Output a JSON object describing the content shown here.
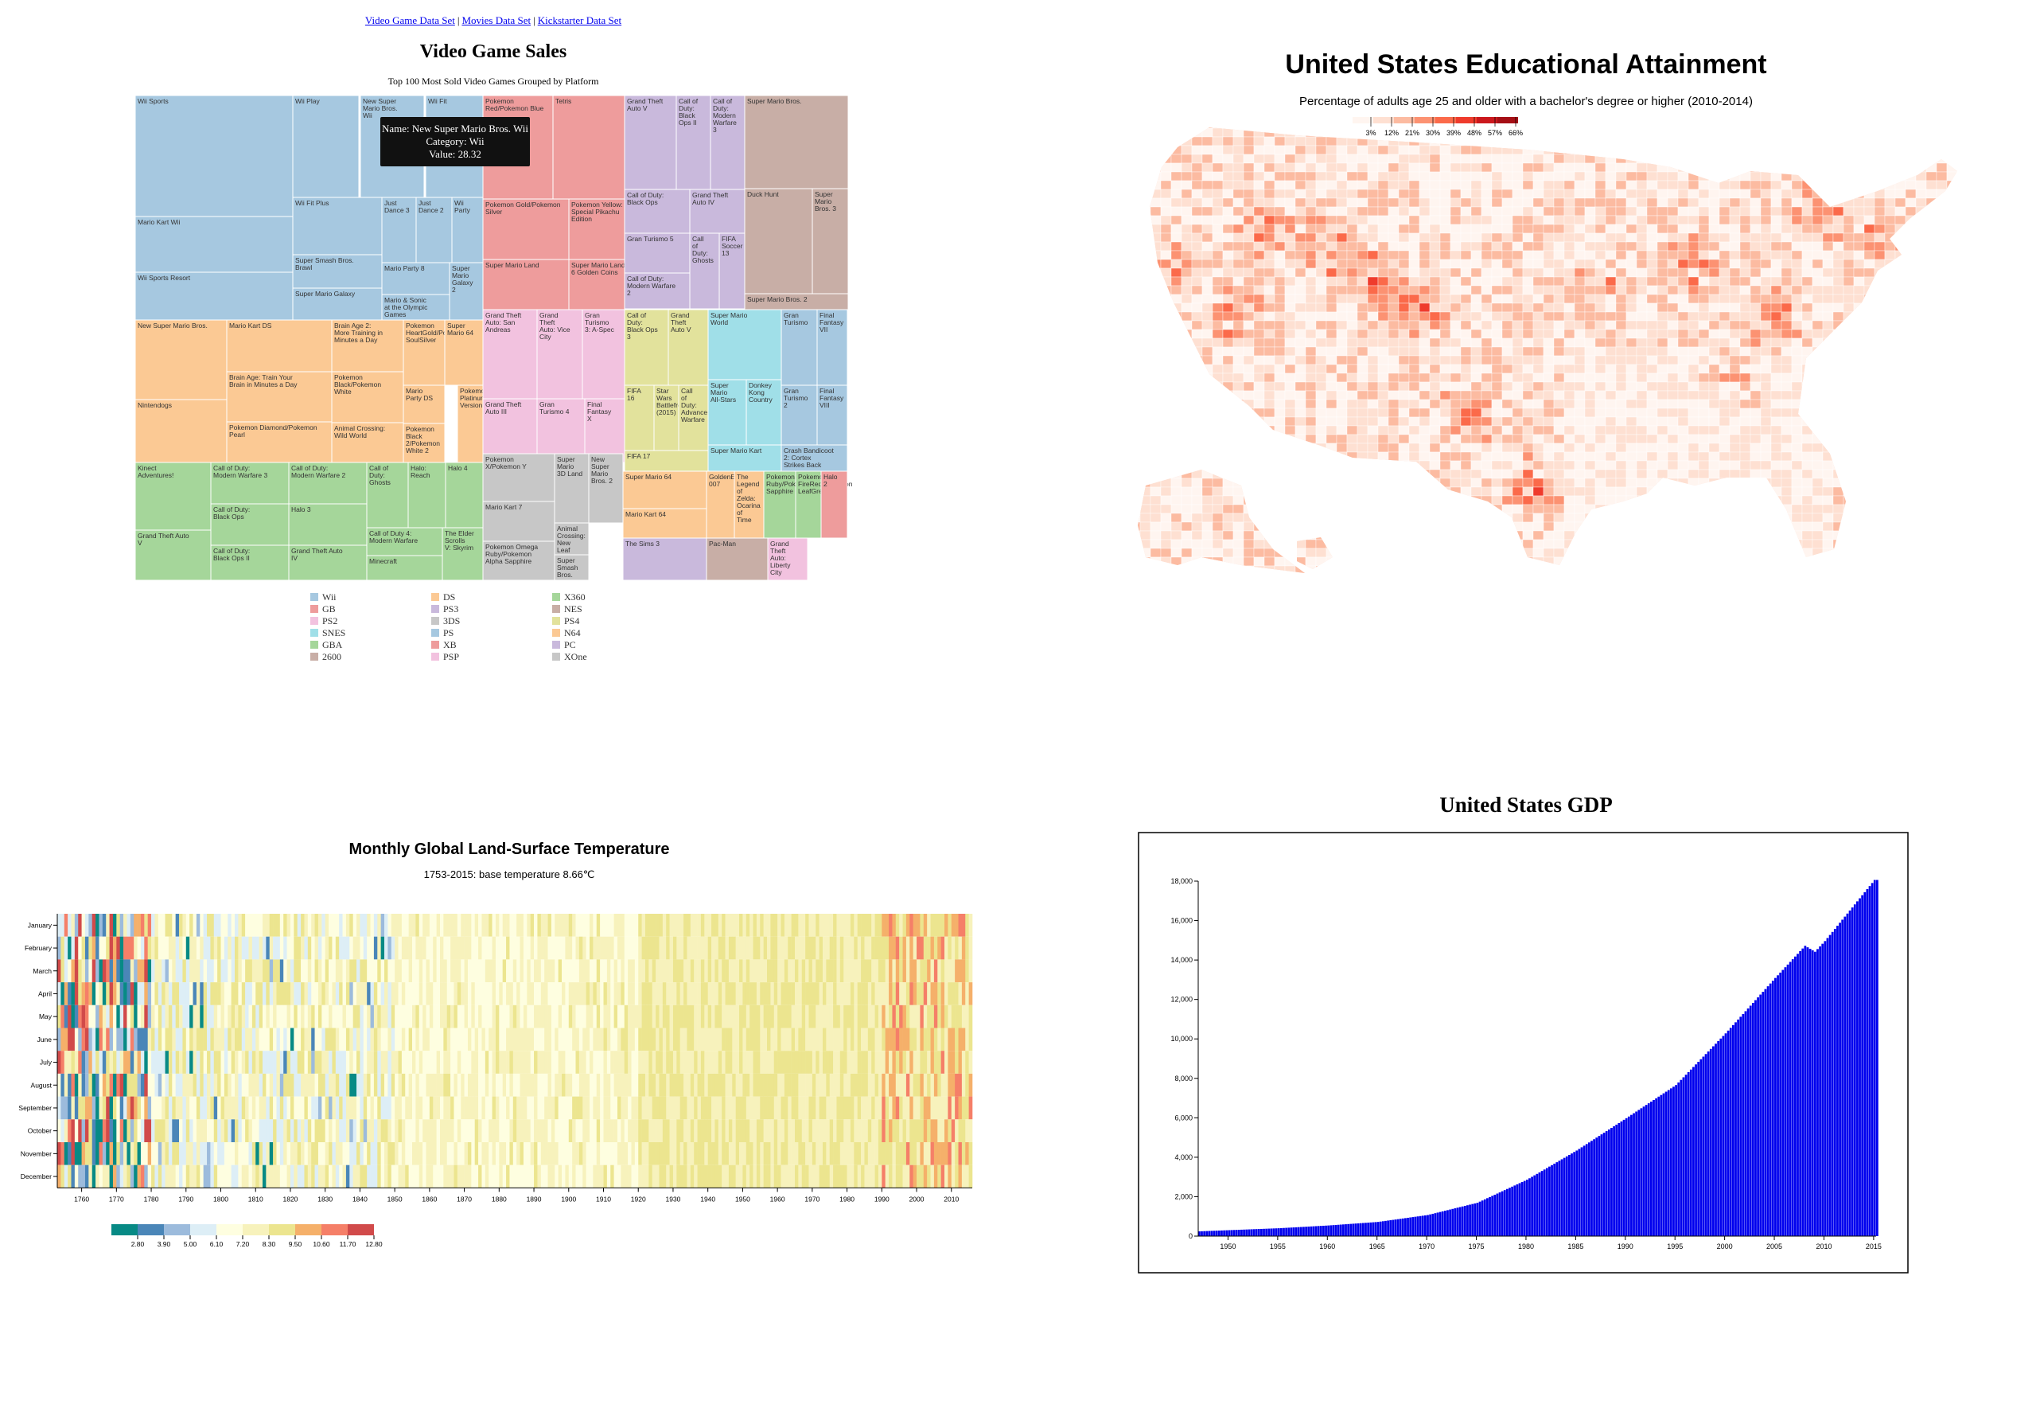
{
  "nav": {
    "links": [
      "Video Game Data Set",
      "Movies Data Set",
      "Kickstarter Data Set"
    ]
  },
  "treemap": {
    "title": "Video Game Sales",
    "subtitle": "Top 100 Most Sold Video Games Grouped by Platform",
    "tooltip": {
      "name": "Name: New Super Mario Bros. Wii",
      "category": "Category: Wii",
      "value": "Value: 28.32"
    },
    "legend": [
      {
        "name": "Wii",
        "color": "#a6c8e0"
      },
      {
        "name": "DS",
        "color": "#fbc994"
      },
      {
        "name": "X360",
        "color": "#a5d69a"
      },
      {
        "name": "GB",
        "color": "#ee9c9c"
      },
      {
        "name": "PS3",
        "color": "#c9b9dc"
      },
      {
        "name": "NES",
        "color": "#c8aea6"
      },
      {
        "name": "PS2",
        "color": "#f2c2df"
      },
      {
        "name": "3DS",
        "color": "#c7c7c7"
      },
      {
        "name": "PS4",
        "color": "#e2e29c"
      },
      {
        "name": "SNES",
        "color": "#a0dfe8"
      },
      {
        "name": "PS",
        "color": "#a6c8e0"
      },
      {
        "name": "N64",
        "color": "#fbc994"
      },
      {
        "name": "GBA",
        "color": "#a5d69a"
      },
      {
        "name": "XB",
        "color": "#ee9c9c"
      },
      {
        "name": "PC",
        "color": "#c9b9dc"
      },
      {
        "name": "2600",
        "color": "#c8aea6"
      },
      {
        "name": "PSP",
        "color": "#f2c2df"
      },
      {
        "name": "XOne",
        "color": "#c7c7c7"
      }
    ]
  },
  "choropleth": {
    "title": "United States Educational Attainment",
    "subtitle": "Percentage of adults age 25 and older with a bachelor's degree or higher (2010-2014)",
    "legend_ticks": [
      "3%",
      "12%",
      "21%",
      "30%",
      "39%",
      "48%",
      "57%",
      "66%"
    ],
    "legend_colors": [
      "#fff5f0",
      "#fee0d2",
      "#fcbba1",
      "#fc9272",
      "#fb6a4a",
      "#ef3b2c",
      "#cb181d",
      "#a50f15"
    ],
    "base_color": "#fcd6c6"
  },
  "heatmap": {
    "title": "Monthly Global Land-Surface Temperature",
    "subtitle": "1753-2015: base temperature 8.66℃",
    "months": [
      "January",
      "February",
      "March",
      "April",
      "May",
      "June",
      "July",
      "August",
      "September",
      "October",
      "November",
      "December"
    ],
    "year_ticks": [
      "1760",
      "1770",
      "1780",
      "1790",
      "1800",
      "1810",
      "1820",
      "1830",
      "1840",
      "1850",
      "1860",
      "1870",
      "1880",
      "1890",
      "1900",
      "1910",
      "1920",
      "1930",
      "1940",
      "1950",
      "1960",
      "1970",
      "1980",
      "1990",
      "2000",
      "2010"
    ],
    "legend_ticks": [
      "2.80",
      "3.90",
      "5.00",
      "6.10",
      "7.20",
      "8.30",
      "9.50",
      "10.60",
      "11.70",
      "12.80"
    ],
    "legend_colors": [
      "#078a85",
      "#4a86b8",
      "#9cbbdc",
      "#ddeef6",
      "#fefee0",
      "#f7f2bc",
      "#ece58f",
      "#f5b06a",
      "#f57f68",
      "#d14a4a"
    ]
  },
  "gdp": {
    "title": "United States GDP",
    "bar_color": "#0000ee",
    "y_ticks": [
      "0",
      "2,000",
      "4,000",
      "6,000",
      "8,000",
      "10,000",
      "12,000",
      "14,000",
      "16,000",
      "18,000"
    ],
    "x_ticks": [
      "1950",
      "1955",
      "1960",
      "1965",
      "1970",
      "1975",
      "1980",
      "1985",
      "1990",
      "1995",
      "2000",
      "2005",
      "2010",
      "2015"
    ]
  },
  "chart_data": [
    {
      "type": "treemap",
      "title": "Video Game Sales",
      "subtitle": "Top 100 Most Sold Video Games Grouped by Platform",
      "tiles": [
        {
          "p": "Wii",
          "n": "Wii Sports"
        },
        {
          "p": "Wii",
          "n": "Mario Kart Wii"
        },
        {
          "p": "Wii",
          "n": "Wii Sports Resort"
        },
        {
          "p": "Wii",
          "n": "Wii Play"
        },
        {
          "p": "Wii",
          "n": "New Super Mario Bros. Wii"
        },
        {
          "p": "Wii",
          "n": "Wii Fit"
        },
        {
          "p": "Wii",
          "n": "Wii Fit Plus"
        },
        {
          "p": "Wii",
          "n": "Super Smash Bros. Brawl"
        },
        {
          "p": "Wii",
          "n": "Super Mario Galaxy"
        },
        {
          "p": "Wii",
          "n": "Just Dance 3"
        },
        {
          "p": "Wii",
          "n": "Just Dance 2"
        },
        {
          "p": "Wii",
          "n": "Wii Party"
        },
        {
          "p": "Wii",
          "n": "Mario Party 8"
        },
        {
          "p": "Wii",
          "n": "Super Mario Galaxy 2"
        },
        {
          "p": "Wii",
          "n": "Mario & Sonic at the Olympic Games"
        },
        {
          "p": "GB",
          "n": "Pokemon Red/Pokemon Blue"
        },
        {
          "p": "GB",
          "n": "Tetris"
        },
        {
          "p": "GB",
          "n": "Pokemon Gold/Pokemon Silver"
        },
        {
          "p": "GB",
          "n": "Pokemon Yellow: Special Pikachu Edition"
        },
        {
          "p": "GB",
          "n": "Super Mario Land"
        },
        {
          "p": "GB",
          "n": "Super Mario Land 2: 6 Golden Coins"
        },
        {
          "p": "PS3",
          "n": "Grand Theft Auto V"
        },
        {
          "p": "PS3",
          "n": "Call of Duty: Black Ops II"
        },
        {
          "p": "PS3",
          "n": "Call of Duty: Modern Warfare 3"
        },
        {
          "p": "PS3",
          "n": "Call of Duty: Black Ops"
        },
        {
          "p": "PS3",
          "n": "Grand Theft Auto IV"
        },
        {
          "p": "PS3",
          "n": "Gran Turismo 5"
        },
        {
          "p": "PS3",
          "n": "Call of Duty: Ghosts"
        },
        {
          "p": "PS3",
          "n": "FIFA Soccer 13"
        },
        {
          "p": "PS3",
          "n": "Call of Duty: Modern Warfare 2"
        },
        {
          "p": "NES",
          "n": "Super Mario Bros."
        },
        {
          "p": "NES",
          "n": "Duck Hunt"
        },
        {
          "p": "NES",
          "n": "Super Mario Bros. 3"
        },
        {
          "p": "NES",
          "n": "Super Mario Bros. 2"
        },
        {
          "p": "DS",
          "n": "New Super Mario Bros."
        },
        {
          "p": "DS",
          "n": "Nintendogs"
        },
        {
          "p": "DS",
          "n": "Mario Kart DS"
        },
        {
          "p": "DS",
          "n": "Brain Age: Train Your Brain in Minutes a Day"
        },
        {
          "p": "DS",
          "n": "Pokemon Diamond/Pokemon Pearl"
        },
        {
          "p": "DS",
          "n": "Brain Age 2: More Training in Minutes a Day"
        },
        {
          "p": "DS",
          "n": "Pokemon Black/Pokemon White"
        },
        {
          "p": "DS",
          "n": "Animal Crossing: Wild World"
        },
        {
          "p": "DS",
          "n": "Pokemon HeartGold/Pokemon SoulSilver"
        },
        {
          "p": "DS",
          "n": "Super Mario 64"
        },
        {
          "p": "DS",
          "n": "Mario Party DS"
        },
        {
          "p": "DS",
          "n": "Pokemon Platinum Version"
        },
        {
          "p": "DS",
          "n": "Pokemon Black 2/Pokemon White 2"
        },
        {
          "p": "PS2",
          "n": "Grand Theft Auto: San Andreas"
        },
        {
          "p": "PS2",
          "n": "Grand Theft Auto: Vice City"
        },
        {
          "p": "PS2",
          "n": "Gran Turismo 3: A-Spec"
        },
        {
          "p": "PS2",
          "n": "Grand Theft Auto III"
        },
        {
          "p": "PS2",
          "n": "Gran Turismo 4"
        },
        {
          "p": "PS2",
          "n": "Final Fantasy X"
        },
        {
          "p": "PS4",
          "n": "Call of Duty: Black Ops 3"
        },
        {
          "p": "PS4",
          "n": "Grand Theft Auto V"
        },
        {
          "p": "PS4",
          "n": "FIFA 16"
        },
        {
          "p": "PS4",
          "n": "Star Wars Battlefront (2015)"
        },
        {
          "p": "PS4",
          "n": "Call of Duty: Advanced Warfare"
        },
        {
          "p": "PS4",
          "n": "FIFA 17"
        },
        {
          "p": "SNES",
          "n": "Super Mario World"
        },
        {
          "p": "SNES",
          "n": "Super Mario All-Stars"
        },
        {
          "p": "SNES",
          "n": "Donkey Kong Country"
        },
        {
          "p": "SNES",
          "n": "Super Mario Kart"
        },
        {
          "p": "PS",
          "n": "Gran Turismo"
        },
        {
          "p": "PS",
          "n": "Final Fantasy VII"
        },
        {
          "p": "PS",
          "n": "Gran Turismo 2"
        },
        {
          "p": "PS",
          "n": "Final Fantasy VIII"
        },
        {
          "p": "PS",
          "n": "Crash Bandicoot 2: Cortex Strikes Back"
        },
        {
          "p": "X360",
          "n": "Kinect Adventures!"
        },
        {
          "p": "X360",
          "n": "Grand Theft Auto V"
        },
        {
          "p": "X360",
          "n": "Call of Duty: Modern Warfare 3"
        },
        {
          "p": "X360",
          "n": "Call of Duty: Black Ops"
        },
        {
          "p": "X360",
          "n": "Call of Duty: Black Ops II"
        },
        {
          "p": "X360",
          "n": "Call of Duty: Modern Warfare 2"
        },
        {
          "p": "X360",
          "n": "Halo 3"
        },
        {
          "p": "X360",
          "n": "Grand Theft Auto IV"
        },
        {
          "p": "X360",
          "n": "Call of Duty: Ghosts"
        },
        {
          "p": "X360",
          "n": "Halo: Reach"
        },
        {
          "p": "X360",
          "n": "Halo 4"
        },
        {
          "p": "X360",
          "n": "Call of Duty 4: Modern Warfare"
        },
        {
          "p": "X360",
          "n": "Minecraft"
        },
        {
          "p": "X360",
          "n": "The Elder Scrolls V: Skyrim"
        },
        {
          "p": "3DS",
          "n": "Pokemon X/Pokemon Y"
        },
        {
          "p": "3DS",
          "n": "Mario Kart 7"
        },
        {
          "p": "3DS",
          "n": "Pokemon Omega Ruby/Pokemon Alpha Sapphire"
        },
        {
          "p": "3DS",
          "n": "Super Mario 3D Land"
        },
        {
          "p": "3DS",
          "n": "New Super Mario Bros. 2"
        },
        {
          "p": "3DS",
          "n": "Animal Crossing: New Leaf"
        },
        {
          "p": "3DS",
          "n": "Super Smash Bros. for Wii U and 3DS"
        },
        {
          "p": "N64",
          "n": "Super Mario 64"
        },
        {
          "p": "N64",
          "n": "Mario Kart 64"
        },
        {
          "p": "N64",
          "n": "GoldenEye 007"
        },
        {
          "p": "N64",
          "n": "The Legend of Zelda: Ocarina of Time"
        },
        {
          "p": "GBA",
          "n": "Pokemon Ruby/Pokemon Sapphire"
        },
        {
          "p": "GBA",
          "n": "Pokemon FireRed/Pokemon LeafGreen"
        },
        {
          "p": "XB",
          "n": "Halo 2"
        },
        {
          "p": "PC",
          "n": "The Sims 3"
        },
        {
          "p": "2600",
          "n": "Pac-Man"
        },
        {
          "p": "PSP",
          "n": "Grand Theft Auto: Liberty City Stories"
        },
        {
          "p": "XOne",
          "n": "Call of Duty: Black Ops 3"
        }
      ]
    },
    {
      "type": "choropleth",
      "title": "United States Educational Attainment",
      "subtitle": "Percentage of adults age 25 and older with a bachelor's degree or higher (2010-2014)",
      "legend_thresholds": [
        3,
        12,
        21,
        30,
        39,
        48,
        57,
        66
      ],
      "unit": "%"
    },
    {
      "type": "heatmap",
      "title": "Monthly Global Land-Surface Temperature",
      "subtitle": "1753-2015: base temperature 8.66℃",
      "x_range": [
        1753,
        2015
      ],
      "y_categories": [
        "January",
        "February",
        "March",
        "April",
        "May",
        "June",
        "July",
        "August",
        "September",
        "October",
        "November",
        "December"
      ],
      "color_thresholds": [
        2.8,
        3.9,
        5.0,
        6.1,
        7.2,
        8.3,
        9.5,
        10.6,
        11.7,
        12.8
      ],
      "base_temperature": 8.66
    },
    {
      "type": "bar",
      "title": "United States GDP",
      "xlim": [
        1947,
        2015
      ],
      "ylim": [
        0,
        18000
      ],
      "anchors": {
        "x": [
          1947,
          1955,
          1960,
          1965,
          1970,
          1975,
          1980,
          1985,
          1990,
          1995,
          2000,
          2005,
          2008,
          2009,
          2010,
          2015
        ],
        "y": [
          243,
          400,
          540,
          720,
          1070,
          1690,
          2860,
          4340,
          5980,
          7660,
          10280,
          13090,
          14720,
          14420,
          14960,
          18060
        ]
      }
    }
  ]
}
